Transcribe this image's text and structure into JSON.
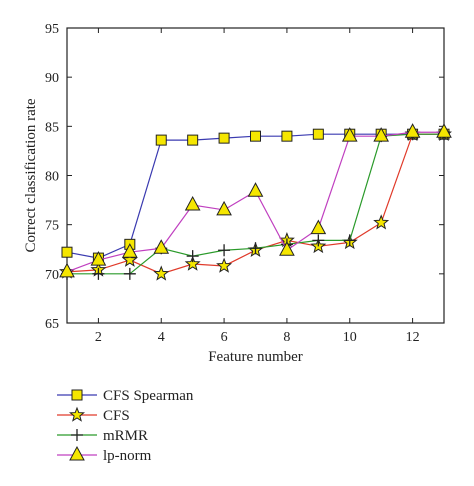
{
  "chart_data": {
    "type": "line",
    "xlabel": "Feature number",
    "ylabel": "Correct classification rate",
    "xlim": [
      1,
      13
    ],
    "ylim": [
      65,
      95
    ],
    "xticks": [
      2,
      4,
      6,
      8,
      10,
      12
    ],
    "yticks": [
      65,
      70,
      75,
      80,
      85,
      90,
      95
    ],
    "grid": false,
    "legend_position": "below",
    "x": [
      1,
      2,
      3,
      4,
      5,
      6,
      7,
      8,
      9,
      10,
      11,
      12,
      13
    ],
    "series": [
      {
        "name": "CFS Spearman",
        "color": "#3a3ab0",
        "marker": "square",
        "marker_fill": "#f5e600",
        "values": [
          72.2,
          71.6,
          73.0,
          83.6,
          83.6,
          83.8,
          84.0,
          84.0,
          84.2,
          84.2,
          84.2,
          84.2,
          84.2
        ]
      },
      {
        "name": "CFS",
        "color": "#e03a2a",
        "marker": "star",
        "marker_fill": "#f5e600",
        "values": [
          70.2,
          70.4,
          71.4,
          70.0,
          71.0,
          70.8,
          72.4,
          73.4,
          72.8,
          73.2,
          75.2,
          84.2,
          84.2
        ]
      },
      {
        "name": "mRMR",
        "color": "#2a9a2a",
        "marker": "plus",
        "marker_fill": "#222222",
        "values": [
          70.0,
          70.0,
          70.0,
          72.6,
          71.8,
          72.4,
          72.6,
          73.0,
          73.4,
          73.4,
          84.0,
          84.2,
          84.2
        ]
      },
      {
        "name": "lp-norm",
        "color": "#c040c0",
        "marker": "triangle",
        "marker_fill": "#f5e600",
        "values": [
          70.2,
          71.4,
          72.2,
          72.6,
          77.0,
          76.5,
          78.4,
          72.4,
          74.6,
          84.0,
          84.0,
          84.4,
          84.4
        ]
      }
    ]
  }
}
